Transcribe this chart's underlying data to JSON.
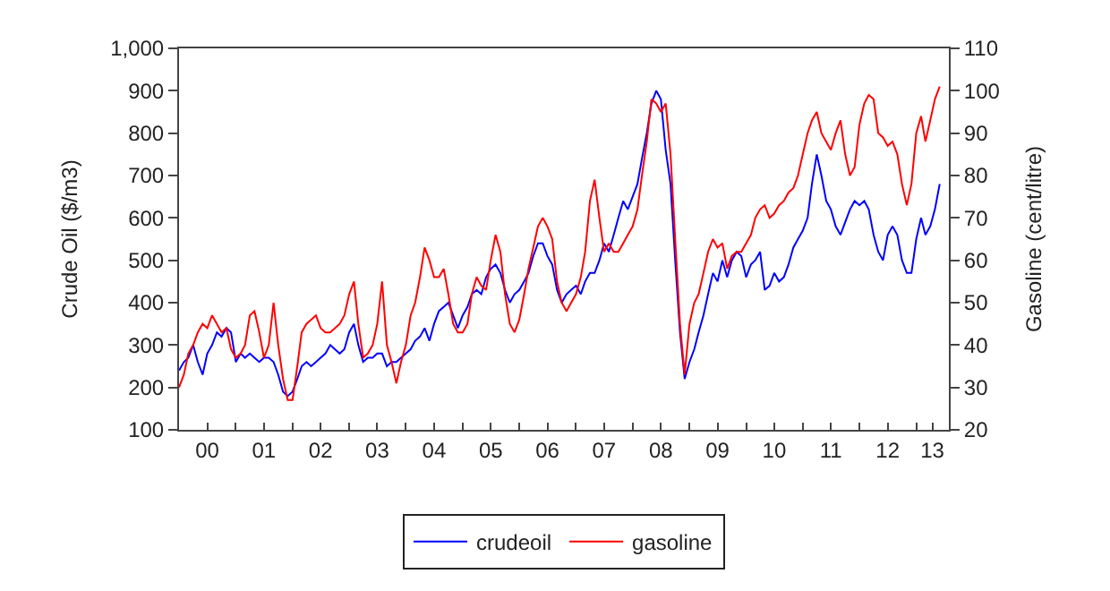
{
  "chart_data": {
    "type": "line",
    "ylabel": "Crude Oil ($/m3)",
    "y2label": "Gasoline (cent/litre)",
    "xlim": [
      "2000-01-01",
      "2013-07-30"
    ],
    "xticks": [
      {
        "value": "2000-01-01",
        "label": null
      },
      {
        "value": "2000-07-01",
        "label": "00"
      },
      {
        "value": "2001-01-01",
        "label": null
      },
      {
        "value": "2001-07-01",
        "label": "01"
      },
      {
        "value": "2002-01-01",
        "label": null
      },
      {
        "value": "2002-07-01",
        "label": "02"
      },
      {
        "value": "2003-01-01",
        "label": null
      },
      {
        "value": "2003-07-01",
        "label": "03"
      },
      {
        "value": "2004-01-01",
        "label": null
      },
      {
        "value": "2004-07-01",
        "label": "04"
      },
      {
        "value": "2005-01-01",
        "label": null
      },
      {
        "value": "2005-07-01",
        "label": "05"
      },
      {
        "value": "2006-01-01",
        "label": null
      },
      {
        "value": "2006-07-01",
        "label": "06"
      },
      {
        "value": "2007-01-01",
        "label": null
      },
      {
        "value": "2007-07-01",
        "label": "07"
      },
      {
        "value": "2008-01-01",
        "label": null
      },
      {
        "value": "2008-07-01",
        "label": "08"
      },
      {
        "value": "2009-01-01",
        "label": null
      },
      {
        "value": "2009-07-01",
        "label": "09"
      },
      {
        "value": "2010-01-01",
        "label": null
      },
      {
        "value": "2010-07-01",
        "label": "10"
      },
      {
        "value": "2011-01-01",
        "label": null
      },
      {
        "value": "2011-07-01",
        "label": "11"
      },
      {
        "value": "2012-01-01",
        "label": null
      },
      {
        "value": "2012-07-01",
        "label": "12"
      },
      {
        "value": "2013-01-01",
        "label": null
      },
      {
        "value": "2013-04-15",
        "label": "13"
      }
    ],
    "ylim": [
      100,
      1000
    ],
    "yticks": [
      100,
      200,
      300,
      400,
      500,
      600,
      700,
      800,
      900,
      {
        "value": 1000,
        "label": "1,000"
      }
    ],
    "y2lim": [
      20,
      110
    ],
    "y2ticks": [
      20,
      30,
      40,
      50,
      60,
      70,
      80,
      90,
      100,
      110
    ],
    "x": [
      "2000-01",
      "2000-02",
      "2000-03",
      "2000-04",
      "2000-05",
      "2000-06",
      "2000-07",
      "2000-08",
      "2000-09",
      "2000-10",
      "2000-11",
      "2000-12",
      "2001-01",
      "2001-02",
      "2001-03",
      "2001-04",
      "2001-05",
      "2001-06",
      "2001-07",
      "2001-08",
      "2001-09",
      "2001-10",
      "2001-11",
      "2001-12",
      "2002-01",
      "2002-02",
      "2002-03",
      "2002-04",
      "2002-05",
      "2002-06",
      "2002-07",
      "2002-08",
      "2002-09",
      "2002-10",
      "2002-11",
      "2002-12",
      "2003-01",
      "2003-02",
      "2003-03",
      "2003-04",
      "2003-05",
      "2003-06",
      "2003-07",
      "2003-08",
      "2003-09",
      "2003-10",
      "2003-11",
      "2003-12",
      "2004-01",
      "2004-02",
      "2004-03",
      "2004-04",
      "2004-05",
      "2004-06",
      "2004-07",
      "2004-08",
      "2004-09",
      "2004-10",
      "2004-11",
      "2004-12",
      "2005-01",
      "2005-02",
      "2005-03",
      "2005-04",
      "2005-05",
      "2005-06",
      "2005-07",
      "2005-08",
      "2005-09",
      "2005-10",
      "2005-11",
      "2005-12",
      "2006-01",
      "2006-02",
      "2006-03",
      "2006-04",
      "2006-05",
      "2006-06",
      "2006-07",
      "2006-08",
      "2006-09",
      "2006-10",
      "2006-11",
      "2006-12",
      "2007-01",
      "2007-02",
      "2007-03",
      "2007-04",
      "2007-05",
      "2007-06",
      "2007-07",
      "2007-08",
      "2007-09",
      "2007-10",
      "2007-11",
      "2007-12",
      "2008-01",
      "2008-02",
      "2008-03",
      "2008-04",
      "2008-05",
      "2008-06",
      "2008-07",
      "2008-08",
      "2008-09",
      "2008-10",
      "2008-11",
      "2008-12",
      "2009-01",
      "2009-02",
      "2009-03",
      "2009-04",
      "2009-05",
      "2009-06",
      "2009-07",
      "2009-08",
      "2009-09",
      "2009-10",
      "2009-11",
      "2009-12",
      "2010-01",
      "2010-02",
      "2010-03",
      "2010-04",
      "2010-05",
      "2010-06",
      "2010-07",
      "2010-08",
      "2010-09",
      "2010-10",
      "2010-11",
      "2010-12",
      "2011-01",
      "2011-02",
      "2011-03",
      "2011-04",
      "2011-05",
      "2011-06",
      "2011-07",
      "2011-08",
      "2011-09",
      "2011-10",
      "2011-11",
      "2011-12",
      "2012-01",
      "2012-02",
      "2012-03",
      "2012-04",
      "2012-05",
      "2012-06",
      "2012-07",
      "2012-08",
      "2012-09",
      "2012-10",
      "2012-11",
      "2012-12",
      "2013-01",
      "2013-02",
      "2013-03",
      "2013-04",
      "2013-05",
      "2013-06"
    ],
    "series": [
      {
        "name": "crudeoil",
        "color": "#0000ff",
        "values": [
          240,
          260,
          270,
          300,
          260,
          230,
          280,
          300,
          330,
          320,
          340,
          330,
          260,
          280,
          270,
          280,
          270,
          260,
          270,
          270,
          260,
          230,
          190,
          180,
          190,
          220,
          250,
          260,
          250,
          260,
          270,
          280,
          300,
          290,
          280,
          290,
          330,
          350,
          300,
          260,
          270,
          270,
          280,
          280,
          250,
          260,
          260,
          270,
          280,
          290,
          310,
          320,
          340,
          310,
          350,
          380,
          390,
          400,
          370,
          340,
          370,
          390,
          420,
          430,
          420,
          460,
          480,
          490,
          470,
          430,
          400,
          420,
          430,
          450,
          470,
          510,
          540,
          540,
          510,
          490,
          430,
          400,
          420,
          430,
          440,
          420,
          450,
          470,
          470,
          500,
          540,
          520,
          560,
          600,
          640,
          620,
          650,
          680,
          740,
          800,
          870,
          900,
          880,
          760,
          680,
          500,
          330,
          220,
          260,
          290,
          330,
          370,
          420,
          470,
          450,
          500,
          460,
          500,
          520,
          510,
          460,
          490,
          500,
          520,
          430,
          440,
          470,
          450,
          460,
          490,
          530,
          550,
          570,
          600,
          680,
          750,
          700,
          640,
          620,
          580,
          560,
          590,
          620,
          640,
          630,
          640,
          620,
          560,
          520,
          500,
          560,
          580,
          560,
          500,
          470,
          470,
          550,
          600,
          560,
          580,
          620,
          680
        ]
      },
      {
        "name": "gasoline",
        "color": "#ff0000",
        "axis": "y2",
        "values": [
          30,
          33,
          38,
          40,
          43,
          45,
          44,
          47,
          45,
          43,
          44,
          39,
          37,
          38,
          40,
          47,
          48,
          43,
          37,
          40,
          50,
          40,
          32,
          27,
          27,
          35,
          43,
          45,
          46,
          47,
          44,
          43,
          43,
          44,
          45,
          47,
          52,
          55,
          45,
          37,
          38,
          40,
          45,
          55,
          40,
          36,
          31,
          36,
          40,
          47,
          50,
          56,
          63,
          60,
          56,
          56,
          58,
          52,
          45,
          43,
          43,
          45,
          52,
          56,
          54,
          53,
          60,
          66,
          62,
          52,
          45,
          43,
          46,
          52,
          58,
          63,
          68,
          70,
          68,
          65,
          55,
          50,
          48,
          50,
          52,
          56,
          62,
          74,
          79,
          70,
          62,
          64,
          62,
          62,
          64,
          66,
          68,
          72,
          80,
          88,
          98,
          97,
          95,
          97,
          85,
          65,
          45,
          33,
          45,
          50,
          52,
          57,
          62,
          65,
          63,
          64,
          58,
          61,
          62,
          62,
          64,
          66,
          70,
          72,
          73,
          70,
          71,
          73,
          74,
          76,
          77,
          80,
          85,
          90,
          93,
          95,
          90,
          88,
          86,
          90,
          93,
          85,
          80,
          82,
          92,
          97,
          99,
          98,
          90,
          89,
          87,
          88,
          85,
          78,
          73,
          78,
          90,
          94,
          88,
          93,
          98,
          101
        ]
      }
    ],
    "marker": "none",
    "line_style": "solid",
    "legend": "bottom"
  }
}
